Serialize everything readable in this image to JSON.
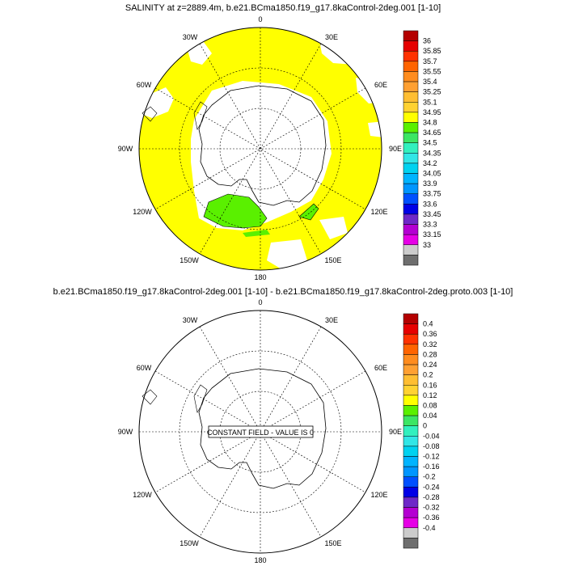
{
  "panel_top": {
    "title": "SALINITY at z=2889.4m, b.e21.BCma1850.f19_g17.8kaControl-2deg.001 [1-10]",
    "lon_labels": [
      "0",
      "30E",
      "60E",
      "90E",
      "120E",
      "150E",
      "180",
      "150W",
      "120W",
      "90W",
      "60W",
      "30W"
    ],
    "colorbar": {
      "labels": [
        "36",
        "35.85",
        "35.7",
        "35.55",
        "35.4",
        "35.25",
        "35.1",
        "34.95",
        "34.8",
        "34.65",
        "34.5",
        "34.35",
        "34.2",
        "34.05",
        "33.9",
        "33.75",
        "33.6",
        "33.45",
        "33.3",
        "33.15",
        "33"
      ],
      "colors": [
        "#b40000",
        "#e60000",
        "#ff3200",
        "#ff6400",
        "#ff8c1e",
        "#ffa032",
        "#ffbe32",
        "#ffd232",
        "#ffff00",
        "#5af000",
        "#3ce664",
        "#32f0be",
        "#32e6e6",
        "#00d2f0",
        "#00b4ff",
        "#0096ff",
        "#0050ff",
        "#0000e6",
        "#6e28c8",
        "#b400d2",
        "#e600e6",
        "#cccccc",
        "#6e6e6e"
      ]
    }
  },
  "panel_bottom": {
    "title": "b.e21.BCma1850.f19_g17.8kaControl-2deg.001 [1-10] - b.e21.BCma1850.f19_g17.8kaControl-2deg.proto.003 [1-10]",
    "lon_labels": [
      "0",
      "30E",
      "60E",
      "90E",
      "120E",
      "150E",
      "180",
      "150W",
      "120W",
      "90W",
      "60W",
      "30W"
    ],
    "annotation": "CONSTANT FIELD - VALUE IS 0",
    "colorbar": {
      "labels": [
        "0.4",
        "0.36",
        "0.32",
        "0.28",
        "0.24",
        "0.2",
        "0.16",
        "0.12",
        "0.08",
        "0.04",
        "0",
        "-0.04",
        "-0.08",
        "-0.12",
        "-0.16",
        "-0.2",
        "-0.24",
        "-0.28",
        "-0.32",
        "-0.36",
        "-0.4"
      ],
      "colors": [
        "#b40000",
        "#e60000",
        "#ff3200",
        "#ff6400",
        "#ff8c1e",
        "#ffa032",
        "#ffbe32",
        "#ffd232",
        "#ffff00",
        "#5af000",
        "#3ce664",
        "#32f0be",
        "#32e6e6",
        "#00d2f0",
        "#00b4ff",
        "#0096ff",
        "#0050ff",
        "#0000e6",
        "#6e28c8",
        "#b400d2",
        "#e600e6",
        "#cccccc",
        "#6e6e6e"
      ]
    }
  }
}
